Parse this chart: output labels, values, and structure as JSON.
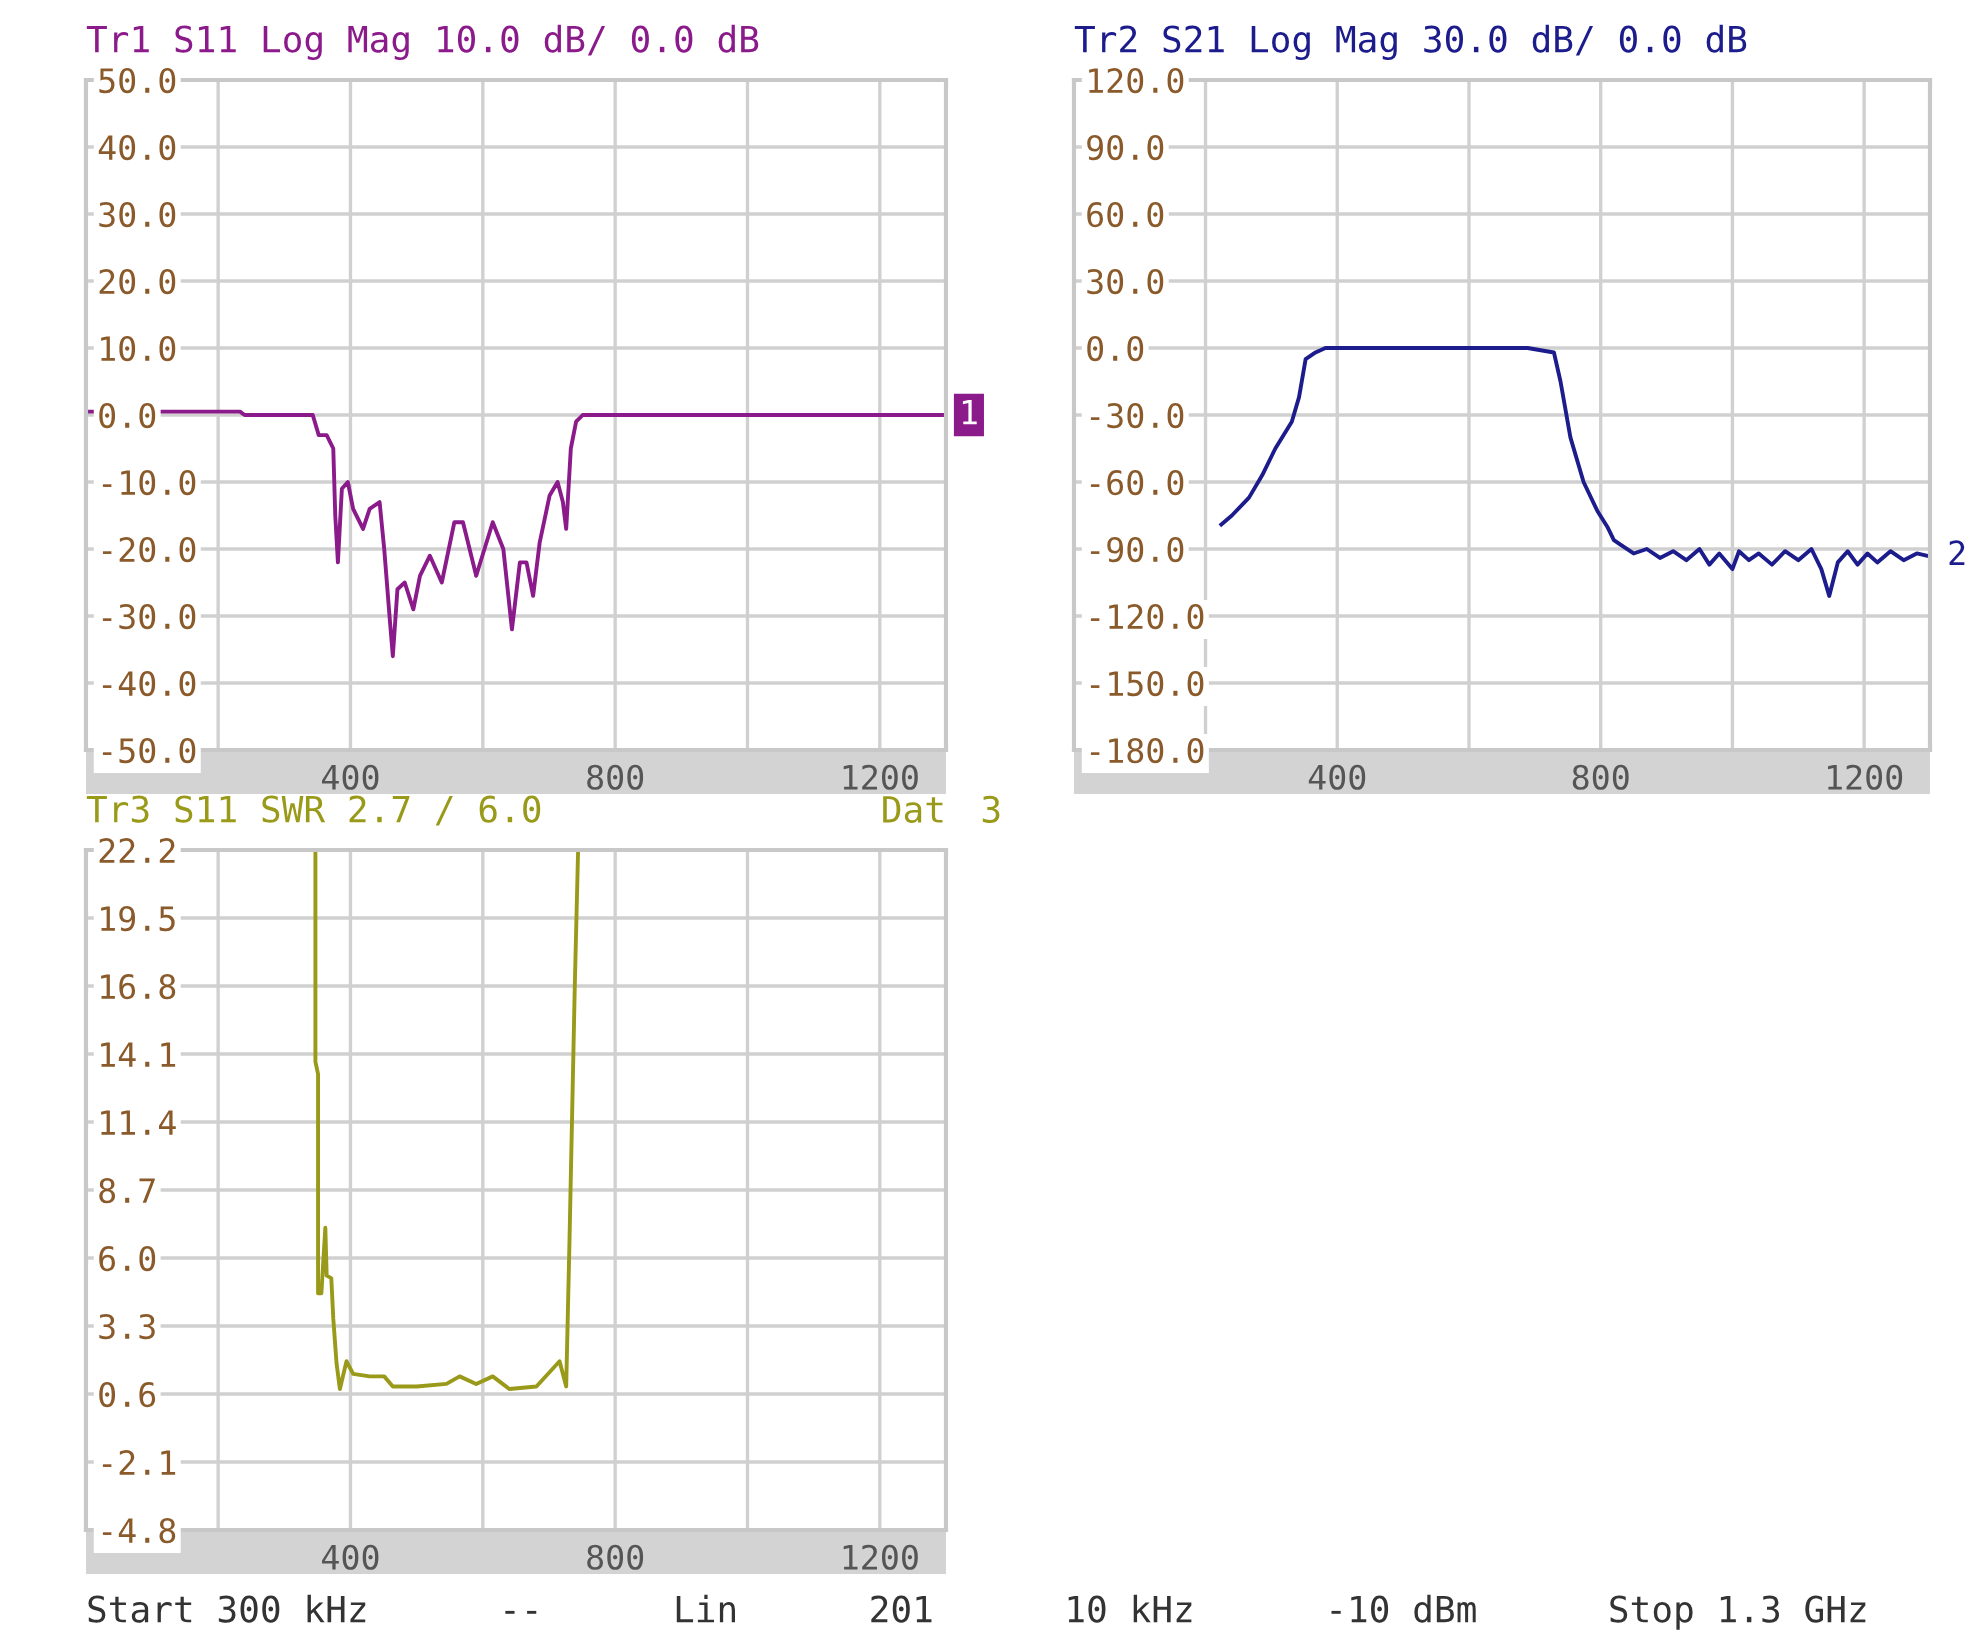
{
  "chart_data": [
    {
      "type": "line",
      "title": "Tr1 S11 Log Mag 10.0 dB/ 0.0 dB",
      "xlim": [
        0.3,
        1300
      ],
      "ylim": [
        -50,
        50
      ],
      "xticks": [
        {
          "value": 200,
          "label": null
        },
        400,
        {
          "value": 600,
          "label": null
        },
        800,
        {
          "value": 1000,
          "label": null
        },
        1200
      ],
      "yticks": [
        {
          "value": 50,
          "label": "50.0"
        },
        {
          "value": 40,
          "label": "40.0"
        },
        {
          "value": 30,
          "label": "30.0"
        },
        {
          "value": 20,
          "label": "20.0"
        },
        {
          "value": 10,
          "label": "10.0"
        },
        {
          "value": 0,
          "label": "0.0"
        },
        {
          "value": -10,
          "label": "-10.0"
        },
        {
          "value": -20,
          "label": "-20.0"
        },
        {
          "value": -30,
          "label": "-30.0"
        },
        {
          "value": -40,
          "label": "-40.0"
        },
        {
          "value": -50,
          "label": "-50.0"
        }
      ],
      "grid": true,
      "annotations": [
        "1"
      ],
      "series": [
        {
          "color": "#8b1a8b",
          "x": [
            0.3,
            233,
            240,
            343,
            352,
            364,
            374,
            377,
            381,
            387,
            396,
            404,
            419,
            429,
            444,
            451,
            459,
            464,
            471,
            482,
            495,
            505,
            520,
            538,
            557,
            570,
            590,
            615,
            631,
            644,
            656,
            666,
            676,
            686,
            701,
            713,
            721,
            726,
            733,
            741,
            751,
            1300
          ],
          "values": [
            0.5,
            0.5,
            0,
            0,
            -3,
            -3,
            -5,
            -15,
            -22,
            -11,
            -10,
            -14,
            -17,
            -14,
            -13,
            -20,
            -30,
            -36,
            -26,
            -25,
            -29,
            -24,
            -21,
            -25,
            -16,
            -16,
            -24,
            -16,
            -20,
            -32,
            -22,
            -22,
            -27,
            -19,
            -12,
            -10,
            -13,
            -17,
            -5,
            -1,
            0,
            0
          ]
        }
      ]
    },
    {
      "type": "line",
      "title": "Tr2 S21 Log Mag 30.0 dB/ 0.0 dB",
      "xlim": [
        0.3,
        1300
      ],
      "ylim": [
        -180,
        120
      ],
      "xticks": [
        {
          "value": 200,
          "label": null
        },
        400,
        {
          "value": 600,
          "label": null
        },
        800,
        {
          "value": 1000,
          "label": null
        },
        1200
      ],
      "yticks": [
        {
          "value": 120,
          "label": "120.0"
        },
        {
          "value": 90,
          "label": "90.0"
        },
        {
          "value": 60,
          "label": "60.0"
        },
        {
          "value": 30,
          "label": "30.0"
        },
        {
          "value": 0,
          "label": "0.0"
        },
        {
          "value": -30,
          "label": "-30.0"
        },
        {
          "value": -60,
          "label": "-60.0"
        },
        {
          "value": -90,
          "label": "-90.0"
        },
        {
          "value": -120,
          "label": "-120.0"
        },
        {
          "value": -150,
          "label": "-150.0"
        },
        {
          "value": -180,
          "label": "-180.0"
        }
      ],
      "grid": true,
      "annotations": [
        "2"
      ],
      "series": [
        {
          "color": "#1c1c8c",
          "x": [
            224,
            240,
            266,
            286,
            306,
            331,
            342,
            352,
            367,
            382,
            659,
            689,
            729,
            739,
            754,
            774,
            795,
            810,
            820,
            830,
            850,
            870,
            890,
            910,
            930,
            950,
            965,
            980,
            1000,
            1010,
            1025,
            1040,
            1060,
            1080,
            1100,
            1120,
            1135,
            1147,
            1160,
            1175,
            1190,
            1205,
            1220,
            1240,
            1260,
            1280,
            1295
          ],
          "values": [
            -79,
            -75,
            -67,
            -57,
            -45,
            -33,
            -22,
            -5,
            -2,
            0,
            0,
            0,
            -2,
            -15,
            -40,
            -60,
            -73,
            -80,
            -86,
            -88,
            -92,
            -90,
            -94,
            -91,
            -95,
            -90,
            -97,
            -92,
            -99,
            -91,
            -95,
            -92,
            -97,
            -91,
            -95,
            -90,
            -99,
            -111,
            -96,
            -91,
            -97,
            -92,
            -96,
            -91,
            -95,
            -92,
            -93
          ]
        }
      ]
    },
    {
      "type": "line",
      "title": "Tr3 S11 SWR 2.7 / 6.0",
      "xlim": [
        0.3,
        1300
      ],
      "ylim": [
        -4.8,
        22.2
      ],
      "xticks": [
        {
          "value": 200,
          "label": null
        },
        400,
        {
          "value": 600,
          "label": null
        },
        800,
        {
          "value": 1000,
          "label": null
        },
        1200
      ],
      "yticks": [
        22.2,
        19.5,
        16.8,
        14.1,
        11.4,
        8.7,
        {
          "value": 6,
          "label": "6.0"
        },
        3.3,
        0.6,
        -2.1,
        -4.8
      ],
      "grid": true,
      "annotations": [
        "Dat",
        "3",
        "Start 300 kHz      --      Lin      201      10 kHz      -10 dBm      Stop 1.3 GHz"
      ],
      "series": [
        {
          "color": "#9a9a1a",
          "x": [
            347,
            347,
            351,
            351,
            356,
            362,
            364,
            371,
            374,
            379,
            384,
            394,
            404,
            429,
            451,
            464,
            500,
            545,
            565,
            590,
            615,
            640,
            681,
            716,
            726,
            731,
            739,
            744
          ],
          "values": [
            22.2,
            13.8,
            13.3,
            4.6,
            4.6,
            7.2,
            5.3,
            5.2,
            3.6,
            1.8,
            0.8,
            1.9,
            1.4,
            1.3,
            1.3,
            0.9,
            0.9,
            1.0,
            1.3,
            1.0,
            1.3,
            0.8,
            0.9,
            1.9,
            0.9,
            6.7,
            16.8,
            22.2
          ]
        }
      ]
    }
  ]
}
